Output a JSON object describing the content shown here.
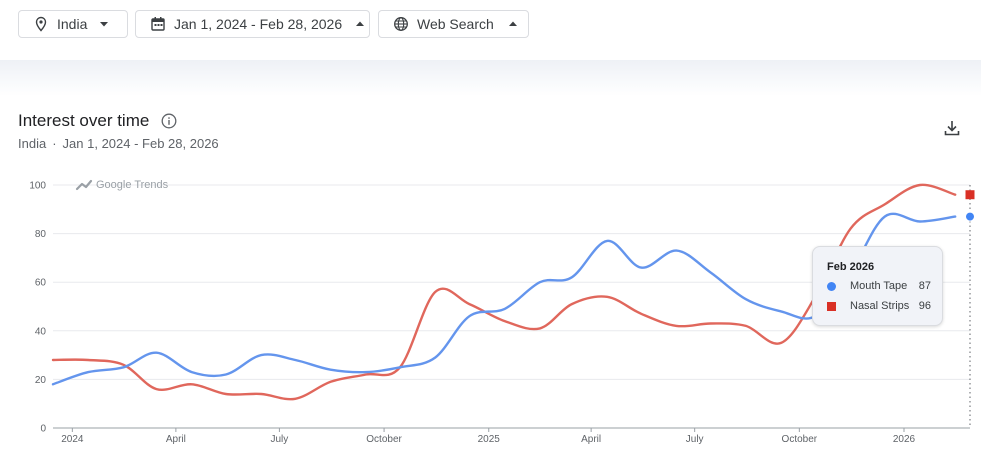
{
  "filters": {
    "region": "India",
    "date_range": "Jan 1, 2024 - Feb 28, 2026",
    "search_type": "Web Search"
  },
  "header": {
    "title": "Interest over time",
    "subtitle_region": "India",
    "subtitle_separator": "·",
    "subtitle_range": "Jan 1, 2024 - Feb 28, 2026"
  },
  "watermark": "Google Trends",
  "tooltip": {
    "title": "Feb 2026",
    "rows": [
      {
        "label": "Mouth Tape",
        "value": "87"
      },
      {
        "label": "Nasal Strips",
        "value": "96"
      }
    ]
  },
  "colors": {
    "mouth_tape": "#6495ed",
    "nasal_strips": "#e0675c",
    "grid": "#e8eaed",
    "axis": "#9aa0a6"
  },
  "chart_data": {
    "type": "line",
    "xlim": [
      "2023-12-15",
      "2026-02-28"
    ],
    "ylim": [
      0,
      100
    ],
    "yticks": [
      0,
      20,
      40,
      60,
      80,
      100
    ],
    "xticks": [
      {
        "date": "2024-01-01",
        "label": "2024"
      },
      {
        "date": "2024-04-01",
        "label": "April"
      },
      {
        "date": "2024-07-01",
        "label": "July"
      },
      {
        "date": "2024-10-01",
        "label": "October"
      },
      {
        "date": "2025-01-01",
        "label": "2025"
      },
      {
        "date": "2025-04-01",
        "label": "April"
      },
      {
        "date": "2025-07-01",
        "label": "July"
      },
      {
        "date": "2025-10-01",
        "label": "October"
      },
      {
        "date": "2026-01-01",
        "label": "2026"
      }
    ],
    "grid": true,
    "series": [
      {
        "name": "Mouth Tape",
        "points": [
          {
            "x": "2023-12-15",
            "y": 18
          },
          {
            "x": "2024-01-15",
            "y": 23
          },
          {
            "x": "2024-02-15",
            "y": 25
          },
          {
            "x": "2024-03-15",
            "y": 31
          },
          {
            "x": "2024-04-15",
            "y": 23
          },
          {
            "x": "2024-05-15",
            "y": 22
          },
          {
            "x": "2024-06-15",
            "y": 30
          },
          {
            "x": "2024-07-15",
            "y": 28
          },
          {
            "x": "2024-08-15",
            "y": 24
          },
          {
            "x": "2024-09-15",
            "y": 23
          },
          {
            "x": "2024-10-15",
            "y": 25
          },
          {
            "x": "2024-11-15",
            "y": 29
          },
          {
            "x": "2024-12-15",
            "y": 46
          },
          {
            "x": "2025-01-15",
            "y": 49
          },
          {
            "x": "2025-02-15",
            "y": 60
          },
          {
            "x": "2025-03-15",
            "y": 62
          },
          {
            "x": "2025-04-15",
            "y": 77
          },
          {
            "x": "2025-05-15",
            "y": 66
          },
          {
            "x": "2025-06-15",
            "y": 73
          },
          {
            "x": "2025-07-15",
            "y": 64
          },
          {
            "x": "2025-08-15",
            "y": 53
          },
          {
            "x": "2025-09-15",
            "y": 48
          },
          {
            "x": "2025-10-15",
            "y": 46
          },
          {
            "x": "2025-11-15",
            "y": 64
          },
          {
            "x": "2025-12-15",
            "y": 87
          },
          {
            "x": "2026-01-15",
            "y": 85
          },
          {
            "x": "2026-02-15",
            "y": 87
          }
        ]
      },
      {
        "name": "Nasal Strips",
        "points": [
          {
            "x": "2023-12-15",
            "y": 28
          },
          {
            "x": "2024-01-15",
            "y": 28
          },
          {
            "x": "2024-02-15",
            "y": 26
          },
          {
            "x": "2024-03-15",
            "y": 16
          },
          {
            "x": "2024-04-15",
            "y": 18
          },
          {
            "x": "2024-05-15",
            "y": 14
          },
          {
            "x": "2024-06-15",
            "y": 14
          },
          {
            "x": "2024-07-15",
            "y": 12
          },
          {
            "x": "2024-08-15",
            "y": 19
          },
          {
            "x": "2024-09-15",
            "y": 22
          },
          {
            "x": "2024-10-15",
            "y": 25
          },
          {
            "x": "2024-11-15",
            "y": 56
          },
          {
            "x": "2024-12-15",
            "y": 51
          },
          {
            "x": "2025-01-15",
            "y": 44
          },
          {
            "x": "2025-02-15",
            "y": 41
          },
          {
            "x": "2025-03-15",
            "y": 51
          },
          {
            "x": "2025-04-15",
            "y": 54
          },
          {
            "x": "2025-05-15",
            "y": 47
          },
          {
            "x": "2025-06-15",
            "y": 42
          },
          {
            "x": "2025-07-15",
            "y": 43
          },
          {
            "x": "2025-08-15",
            "y": 42
          },
          {
            "x": "2025-09-15",
            "y": 35
          },
          {
            "x": "2025-10-15",
            "y": 54
          },
          {
            "x": "2025-11-15",
            "y": 82
          },
          {
            "x": "2025-12-15",
            "y": 92
          },
          {
            "x": "2026-01-15",
            "y": 100
          },
          {
            "x": "2026-02-15",
            "y": 96
          }
        ]
      }
    ]
  }
}
